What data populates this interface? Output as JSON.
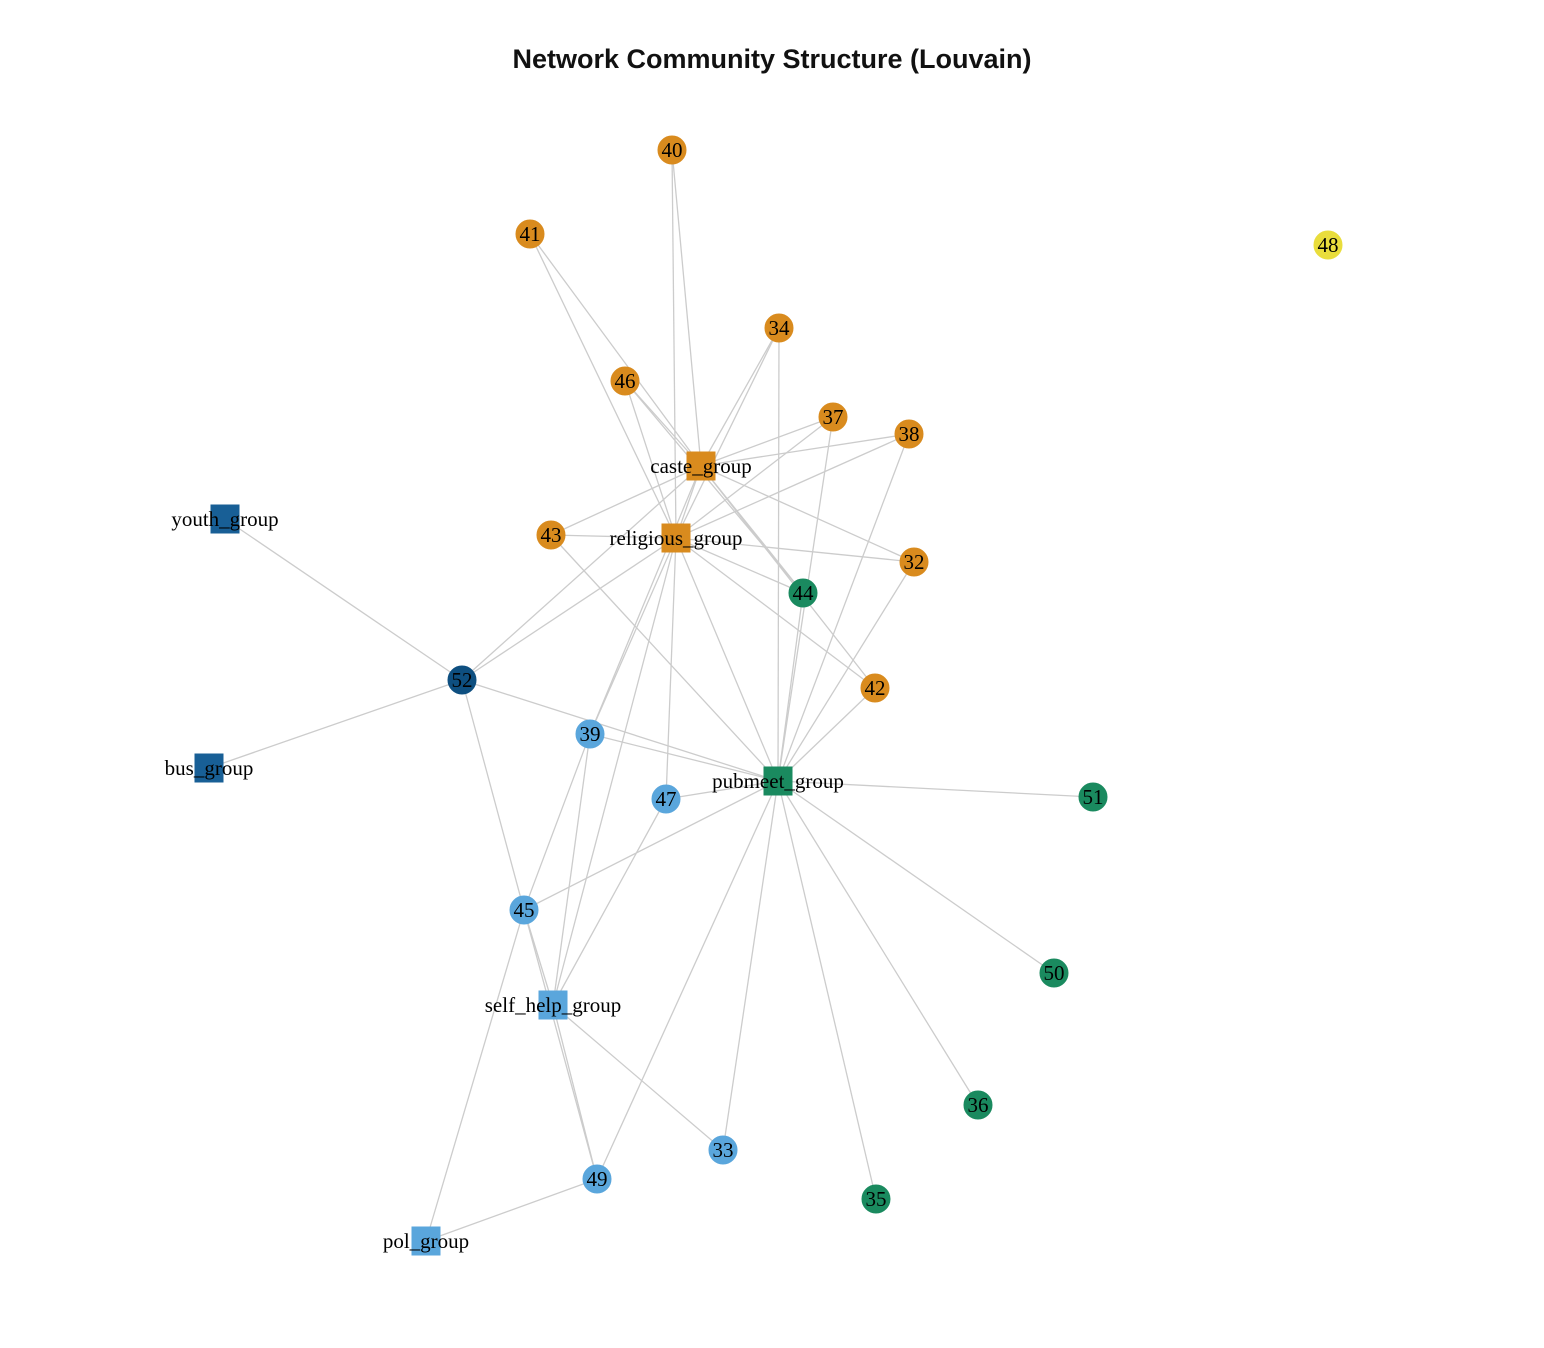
{
  "title": "Network Community Structure (Louvain)",
  "colors": {
    "edge": "#cccccc",
    "orange": "#d98b1e",
    "green": "#1a8a5f",
    "lightblue": "#5aa6dc",
    "darkblue": "#185f96",
    "navy": "#0e4f80",
    "yellow": "#e9dd3c"
  },
  "nodes": [
    {
      "id": "40",
      "label": "40",
      "shape": "circle",
      "color": "orange"
    },
    {
      "id": "41",
      "label": "41",
      "shape": "circle",
      "color": "orange"
    },
    {
      "id": "48",
      "label": "48",
      "shape": "circle",
      "color": "yellow"
    },
    {
      "id": "34",
      "label": "34",
      "shape": "circle",
      "color": "orange"
    },
    {
      "id": "46",
      "label": "46",
      "shape": "circle",
      "color": "orange"
    },
    {
      "id": "37",
      "label": "37",
      "shape": "circle",
      "color": "orange"
    },
    {
      "id": "38",
      "label": "38",
      "shape": "circle",
      "color": "orange"
    },
    {
      "id": "caste_group",
      "label": "caste_group",
      "shape": "square",
      "color": "orange"
    },
    {
      "id": "youth_group",
      "label": "youth_group",
      "shape": "square",
      "color": "darkblue"
    },
    {
      "id": "43",
      "label": "43",
      "shape": "circle",
      "color": "orange"
    },
    {
      "id": "religious_group",
      "label": "religious_group",
      "shape": "square",
      "color": "orange"
    },
    {
      "id": "32",
      "label": "32",
      "shape": "circle",
      "color": "orange"
    },
    {
      "id": "44",
      "label": "44",
      "shape": "circle",
      "color": "green"
    },
    {
      "id": "52",
      "label": "52",
      "shape": "circle",
      "color": "navy"
    },
    {
      "id": "42",
      "label": "42",
      "shape": "circle",
      "color": "orange"
    },
    {
      "id": "39",
      "label": "39",
      "shape": "circle",
      "color": "lightblue"
    },
    {
      "id": "bus_group",
      "label": "bus_group",
      "shape": "square",
      "color": "darkblue"
    },
    {
      "id": "pubmeet_group",
      "label": "pubmeet_group",
      "shape": "square",
      "color": "green"
    },
    {
      "id": "47",
      "label": "47",
      "shape": "circle",
      "color": "lightblue"
    },
    {
      "id": "51",
      "label": "51",
      "shape": "circle",
      "color": "green"
    },
    {
      "id": "45",
      "label": "45",
      "shape": "circle",
      "color": "lightblue"
    },
    {
      "id": "50",
      "label": "50",
      "shape": "circle",
      "color": "green"
    },
    {
      "id": "self_help_group",
      "label": "self_help_group",
      "shape": "square",
      "color": "lightblue"
    },
    {
      "id": "36",
      "label": "36",
      "shape": "circle",
      "color": "green"
    },
    {
      "id": "33",
      "label": "33",
      "shape": "circle",
      "color": "lightblue"
    },
    {
      "id": "49",
      "label": "49",
      "shape": "circle",
      "color": "lightblue"
    },
    {
      "id": "35",
      "label": "35",
      "shape": "circle",
      "color": "green"
    },
    {
      "id": "pol_group",
      "label": "pol_group",
      "shape": "square",
      "color": "lightblue"
    }
  ],
  "edges": [
    [
      "40",
      "caste_group"
    ],
    [
      "40",
      "religious_group"
    ],
    [
      "41",
      "caste_group"
    ],
    [
      "41",
      "religious_group"
    ],
    [
      "34",
      "caste_group"
    ],
    [
      "34",
      "religious_group"
    ],
    [
      "34",
      "pubmeet_group"
    ],
    [
      "46",
      "caste_group"
    ],
    [
      "46",
      "religious_group"
    ],
    [
      "46",
      "44"
    ],
    [
      "37",
      "caste_group"
    ],
    [
      "37",
      "religious_group"
    ],
    [
      "37",
      "pubmeet_group"
    ],
    [
      "38",
      "caste_group"
    ],
    [
      "38",
      "religious_group"
    ],
    [
      "38",
      "pubmeet_group"
    ],
    [
      "43",
      "caste_group"
    ],
    [
      "43",
      "religious_group"
    ],
    [
      "43",
      "pubmeet_group"
    ],
    [
      "32",
      "caste_group"
    ],
    [
      "32",
      "religious_group"
    ],
    [
      "32",
      "pubmeet_group"
    ],
    [
      "42",
      "caste_group"
    ],
    [
      "42",
      "religious_group"
    ],
    [
      "42",
      "pubmeet_group"
    ],
    [
      "44",
      "caste_group"
    ],
    [
      "44",
      "religious_group"
    ],
    [
      "44",
      "pubmeet_group"
    ],
    [
      "caste_group",
      "religious_group"
    ],
    [
      "caste_group",
      "52"
    ],
    [
      "caste_group",
      "39"
    ],
    [
      "religious_group",
      "52"
    ],
    [
      "religious_group",
      "39"
    ],
    [
      "religious_group",
      "47"
    ],
    [
      "religious_group",
      "pubmeet_group"
    ],
    [
      "religious_group",
      "self_help_group"
    ],
    [
      "52",
      "youth_group"
    ],
    [
      "52",
      "bus_group"
    ],
    [
      "52",
      "pubmeet_group"
    ],
    [
      "52",
      "45"
    ],
    [
      "39",
      "pubmeet_group"
    ],
    [
      "39",
      "45"
    ],
    [
      "39",
      "self_help_group"
    ],
    [
      "47",
      "pubmeet_group"
    ],
    [
      "47",
      "self_help_group"
    ],
    [
      "pubmeet_group",
      "51"
    ],
    [
      "pubmeet_group",
      "50"
    ],
    [
      "pubmeet_group",
      "36"
    ],
    [
      "pubmeet_group",
      "35"
    ],
    [
      "pubmeet_group",
      "33"
    ],
    [
      "pubmeet_group",
      "49"
    ],
    [
      "pubmeet_group",
      "45"
    ],
    [
      "45",
      "self_help_group"
    ],
    [
      "45",
      "pol_group"
    ],
    [
      "45",
      "49"
    ],
    [
      "self_help_group",
      "33"
    ],
    [
      "self_help_group",
      "49"
    ],
    [
      "49",
      "pol_group"
    ]
  ]
}
